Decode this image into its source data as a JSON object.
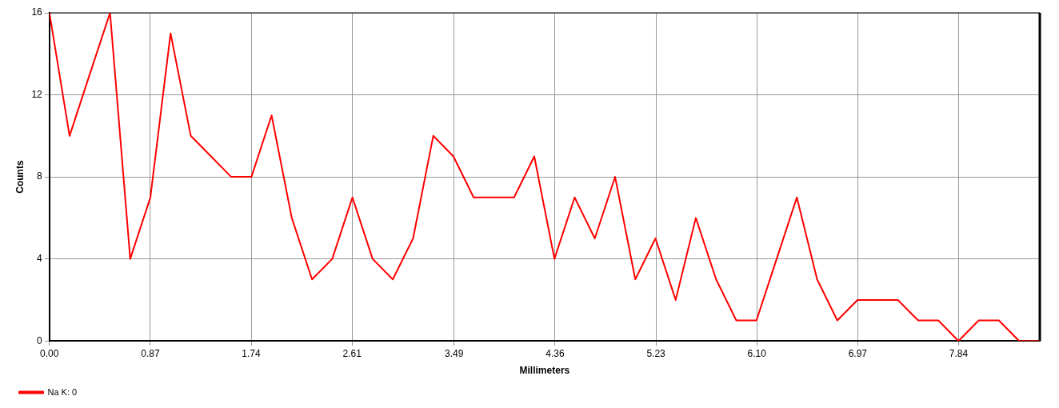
{
  "chart_data": {
    "type": "line",
    "xlabel": "Millimeters",
    "ylabel": "Counts",
    "x": [
      0,
      0.174,
      0.348,
      0.523,
      0.697,
      0.871,
      1.045,
      1.219,
      1.394,
      1.568,
      1.742,
      1.916,
      2.09,
      2.265,
      2.439,
      2.613,
      2.787,
      2.961,
      3.136,
      3.31,
      3.484,
      3.658,
      3.832,
      4.007,
      4.181,
      4.355,
      4.529,
      4.703,
      4.878,
      5.052,
      5.226,
      5.4,
      5.574,
      5.749,
      5.923,
      6.097,
      6.271,
      6.445,
      6.62,
      6.794,
      6.968,
      7.142,
      7.316,
      7.491,
      7.665,
      7.839,
      8.013,
      8.187,
      8.362,
      8.536
    ],
    "series": [
      {
        "name": "Na K: 0",
        "color": "#ff0000",
        "values": [
          16,
          10,
          13,
          16,
          4,
          7,
          15,
          10,
          9,
          8,
          8,
          11,
          6,
          3,
          4,
          7,
          4,
          3,
          5,
          10,
          9,
          7,
          7,
          7,
          9,
          4,
          7,
          5,
          8,
          3,
          5,
          2,
          6,
          3,
          1,
          1,
          4,
          7,
          3,
          1,
          2,
          2,
          2,
          1,
          1,
          0,
          1,
          1,
          0,
          0
        ]
      }
    ],
    "xlim": [
      0,
      8.54
    ],
    "xticks": [
      {
        "value": 0,
        "label": "0.00"
      },
      0.87,
      1.74,
      2.61,
      3.49,
      4.36,
      5.23,
      {
        "value": 6.1,
        "label": "6.10"
      },
      6.97,
      7.84
    ],
    "ylim": [
      0,
      16
    ],
    "yticks": [
      0,
      4,
      8,
      12,
      16
    ],
    "grid": true,
    "legend": "bottom left",
    "marker": "none",
    "line_style": "solid"
  }
}
